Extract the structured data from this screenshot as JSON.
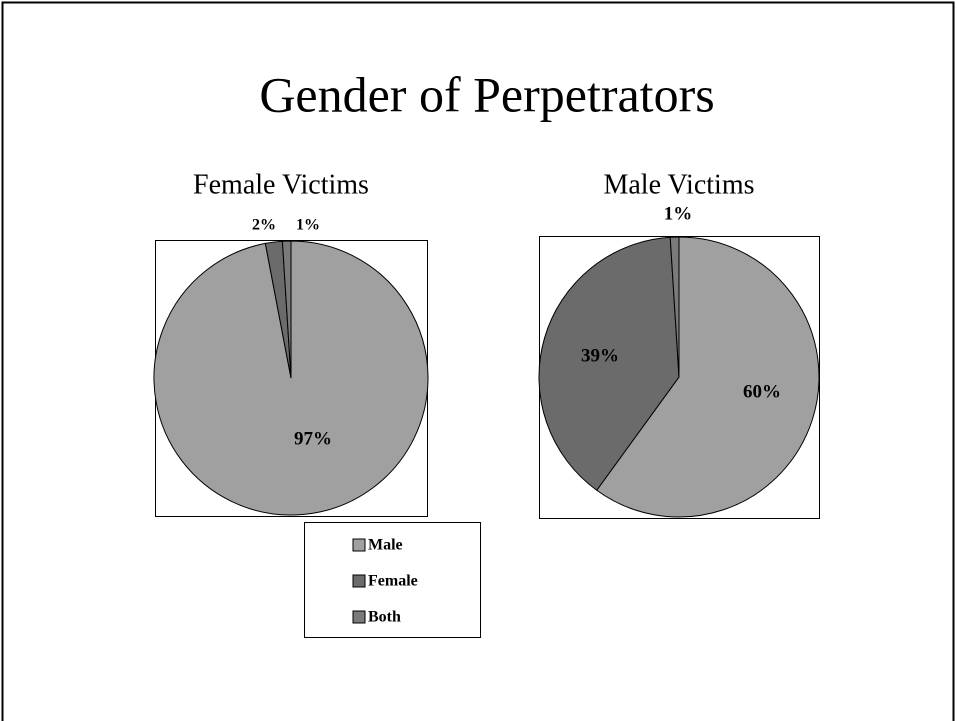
{
  "title": "Gender of Perpetrators",
  "chart_data": [
    {
      "type": "pie",
      "title": "Female Victims",
      "categories": [
        "Male",
        "Female",
        "Both"
      ],
      "values": [
        97,
        2,
        1
      ],
      "value_labels": [
        "97%",
        "2%",
        "1%"
      ],
      "colors": [
        "#a0a0a0",
        "#6b6b6b",
        "#7a7a7a"
      ],
      "legend": "bottom"
    },
    {
      "type": "pie",
      "title": "Male Victims",
      "categories": [
        "Male",
        "Female",
        "Both"
      ],
      "values": [
        60,
        39,
        1
      ],
      "value_labels": [
        "60%",
        "39%",
        "1%"
      ],
      "colors": [
        "#a0a0a0",
        "#6b6b6b",
        "#7a7a7a"
      ]
    }
  ]
}
